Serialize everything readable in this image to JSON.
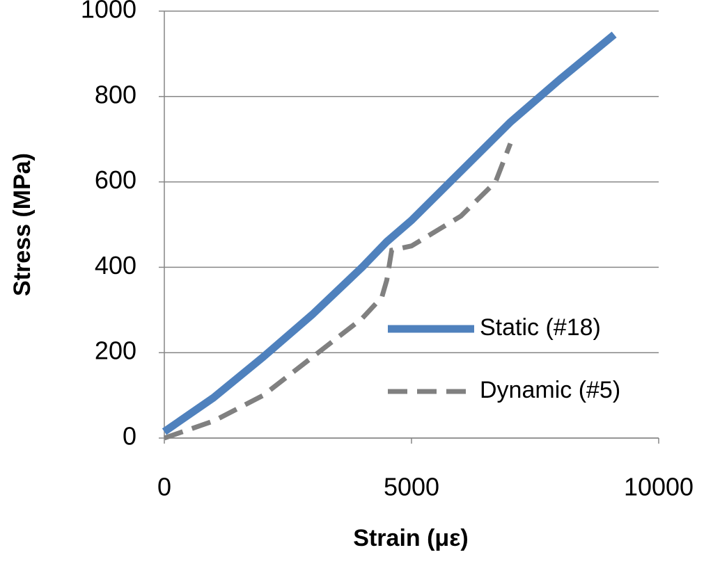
{
  "chart_data": {
    "type": "line",
    "x_label": "Strain (με)",
    "y_label": "Stress (MPa)",
    "xlim": [
      0,
      10000
    ],
    "ylim": [
      0,
      1000
    ],
    "xticks": [
      0,
      5000,
      10000
    ],
    "yticks": [
      0,
      200,
      400,
      600,
      800,
      1000
    ],
    "grid": true,
    "legend": "lower right",
    "series": [
      {
        "name": "Static (#18)",
        "color": "#4f81bd",
        "style": "solid",
        "x": [
          0,
          1000,
          2000,
          3000,
          4000,
          4500,
          5000,
          6000,
          7000,
          8000,
          9100
        ],
        "values": [
          15,
          95,
          190,
          290,
          400,
          460,
          510,
          625,
          740,
          840,
          945
        ]
      },
      {
        "name": "Dynamic (#5)",
        "color": "#808080",
        "style": "dashed",
        "x": [
          0,
          1000,
          2000,
          3000,
          4000,
          4400,
          4500,
          4600,
          5000,
          6000,
          6700,
          7000
        ],
        "values": [
          0,
          40,
          100,
          190,
          280,
          330,
          370,
          440,
          450,
          520,
          600,
          690
        ]
      }
    ]
  }
}
